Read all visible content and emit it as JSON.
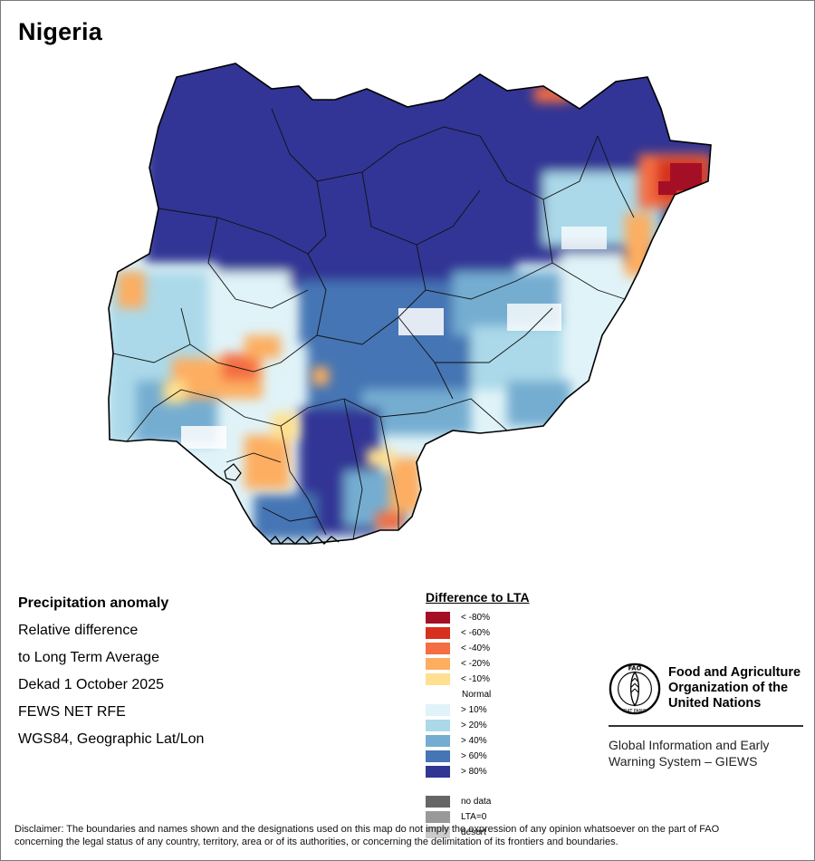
{
  "header": {
    "title": "Nigeria"
  },
  "info": {
    "lines": [
      "Precipitation anomaly",
      "Relative difference",
      "to Long Term Average",
      "Dekad 1 October 2025",
      "FEWS NET RFE",
      "WGS84, Geographic Lat/Lon"
    ]
  },
  "legend": {
    "title": "Difference to LTA",
    "dry": [
      {
        "label": "< -80%",
        "color": "#A50F26"
      },
      {
        "label": "< -60%",
        "color": "#D7301F"
      },
      {
        "label": "< -40%",
        "color": "#F46D43"
      },
      {
        "label": "< -20%",
        "color": "#FDAE61"
      },
      {
        "label": "< -10%",
        "color": "#FEE090"
      }
    ],
    "normal": "Normal",
    "wet": [
      {
        "label": "> 10%",
        "color": "#E0F3F8"
      },
      {
        "label": "> 20%",
        "color": "#ABD9E9"
      },
      {
        "label": "> 40%",
        "color": "#74ADD1"
      },
      {
        "label": "> 60%",
        "color": "#4575B4"
      },
      {
        "label": "> 80%",
        "color": "#313695"
      }
    ],
    "special": [
      {
        "label": "no data",
        "color": "#666666"
      },
      {
        "label": "LTA=0",
        "color": "#999999"
      },
      {
        "label": "desert",
        "color": "#CCCCCC"
      }
    ]
  },
  "organization": {
    "name_lines": [
      "Food and Agriculture",
      "Organization of the",
      "United Nations"
    ],
    "emblem_letters": "FAO",
    "emblem_motto": "FIAT PANIS",
    "program_lines": [
      "Global Information and Early",
      "Warning System – GIEWS"
    ]
  },
  "disclaimer": {
    "line1": "Disclaimer: The boundaries and names shown and the designations used on this map do not imply the expression of any opinion whatsoever on the part of FAO",
    "line2": "concerning the legal status of any country, territory, area or of its authorities, or concerning the delimitation of its frontiers and boundaries."
  }
}
